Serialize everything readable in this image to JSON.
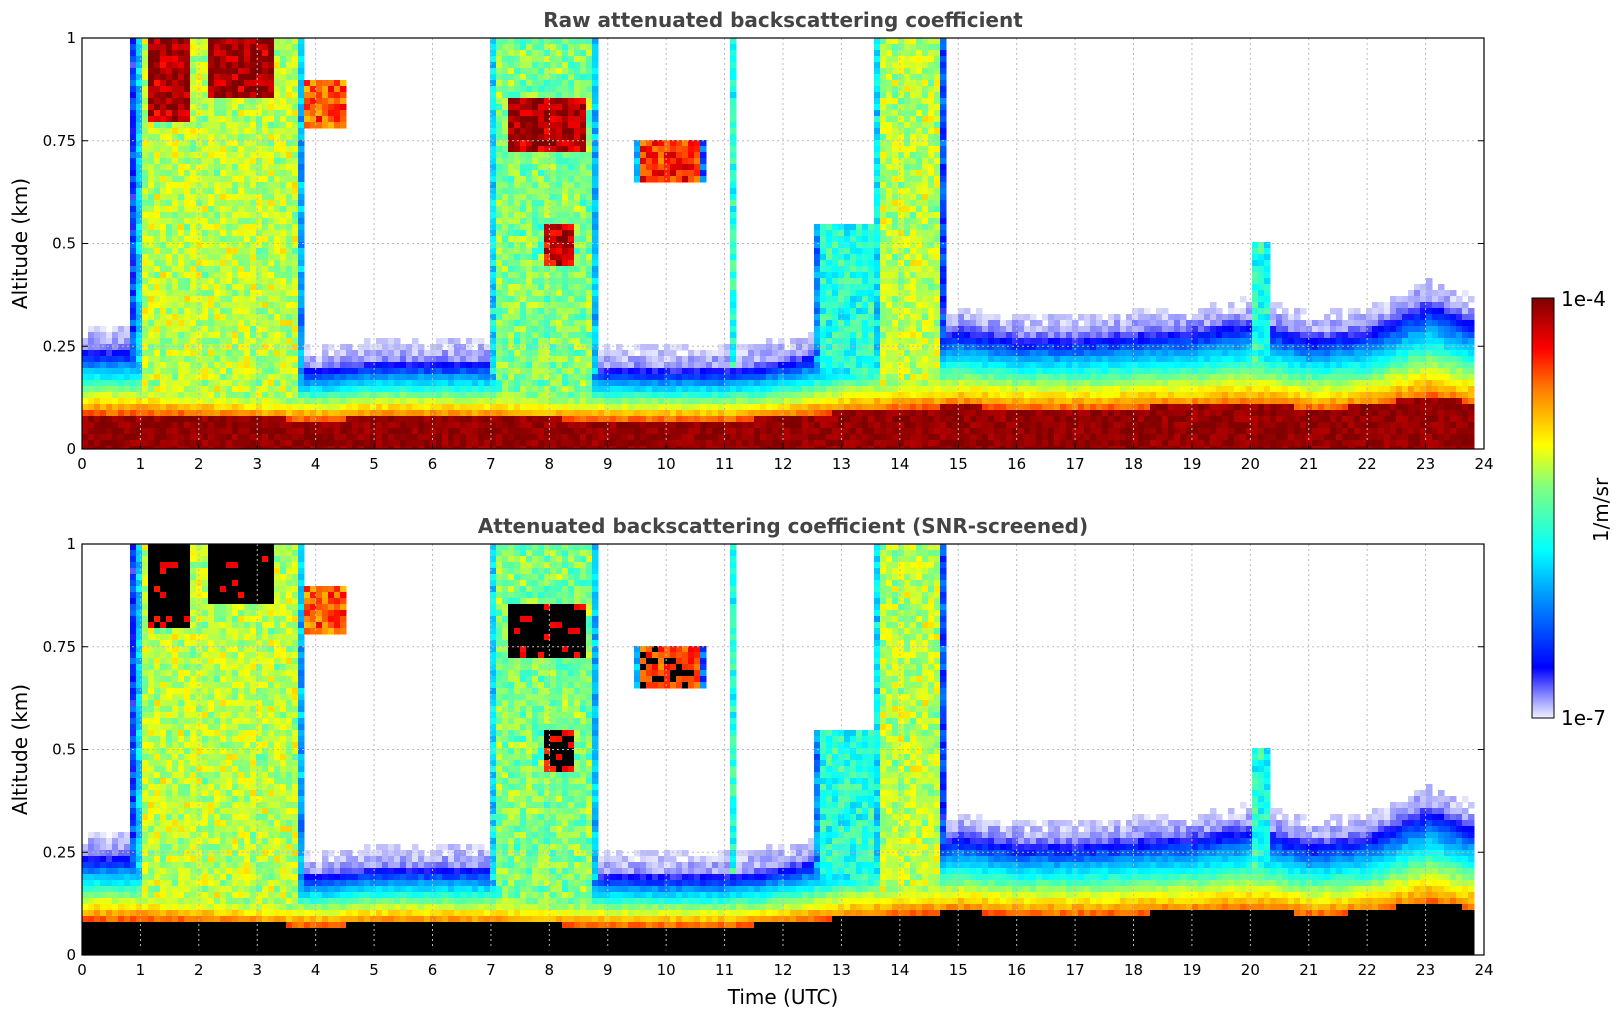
{
  "chart_data": [
    {
      "type": "heatmap",
      "title": "Raw attenuated backscattering coefficient",
      "xlabel": "",
      "ylabel": "Altitude (km)",
      "xlim": [
        0,
        24
      ],
      "ylim": [
        0,
        1
      ],
      "xticks": [
        "0",
        "1",
        "2",
        "3",
        "4",
        "5",
        "6",
        "7",
        "8",
        "9",
        "10",
        "11",
        "12",
        "13",
        "14",
        "15",
        "16",
        "17",
        "18",
        "19",
        "20",
        "21",
        "22",
        "23",
        "24"
      ],
      "yticks": [
        "0",
        "0.25",
        "0.5",
        "0.75",
        "1"
      ],
      "ytick_values": [
        0,
        0.25,
        0.5,
        0.75,
        1
      ],
      "grid": true,
      "screened": false,
      "data_end_utc": 23.8,
      "clouds": [
        {
          "t": [
            0.8,
            3.8
          ],
          "z": [
            0,
            1
          ],
          "level": 0.6
        },
        {
          "t": [
            1.0,
            1.8
          ],
          "z": [
            0.8,
            1
          ],
          "level": 0.95
        },
        {
          "t": [
            2.0,
            3.3
          ],
          "z": [
            0.85,
            1
          ],
          "level": 0.97
        },
        {
          "t": [
            3.7,
            4.5
          ],
          "z": [
            0.78,
            0.9
          ],
          "level": 0.8
        },
        {
          "t": [
            6.9,
            8.8
          ],
          "z": [
            0,
            1
          ],
          "level": 0.55
        },
        {
          "t": [
            7.1,
            8.7
          ],
          "z": [
            0.72,
            0.85
          ],
          "level": 0.95
        },
        {
          "t": [
            7.8,
            8.4
          ],
          "z": [
            0.45,
            0.55
          ],
          "level": 0.93
        },
        {
          "t": [
            9.4,
            10.6
          ],
          "z": [
            0.65,
            0.75
          ],
          "level": 0.85
        },
        {
          "t": [
            11.0,
            11.1
          ],
          "z": [
            0.2,
            1
          ],
          "level": 0.45
        },
        {
          "t": [
            12.5,
            13.6
          ],
          "z": [
            0.18,
            0.55
          ],
          "level": 0.45
        },
        {
          "t": [
            13.5,
            14.7
          ],
          "z": [
            0.15,
            1
          ],
          "level": 0.6
        },
        {
          "t": [
            20.0,
            20.3
          ],
          "z": [
            0.2,
            0.5
          ],
          "level": 0.45
        }
      ],
      "boundary_layer_top_km": [
        [
          0,
          0.25
        ],
        [
          1,
          0.25
        ],
        [
          4,
          0.2
        ],
        [
          5,
          0.22
        ],
        [
          7,
          0.22
        ],
        [
          9,
          0.2
        ],
        [
          11,
          0.2
        ],
        [
          12,
          0.22
        ],
        [
          13,
          0.26
        ],
        [
          15,
          0.3
        ],
        [
          16,
          0.28
        ],
        [
          17,
          0.28
        ],
        [
          18,
          0.29
        ],
        [
          19,
          0.3
        ],
        [
          20,
          0.32
        ],
        [
          21,
          0.28
        ],
        [
          22,
          0.3
        ],
        [
          23,
          0.37
        ],
        [
          23.8,
          0.32
        ]
      ]
    },
    {
      "type": "heatmap",
      "title": "Attenuated backscattering coefficient (SNR-screened)",
      "xlabel": "Time (UTC)",
      "ylabel": "Altitude (km)",
      "xlim": [
        0,
        24
      ],
      "ylim": [
        0,
        1
      ],
      "xticks": [
        "0",
        "1",
        "2",
        "3",
        "4",
        "5",
        "6",
        "7",
        "8",
        "9",
        "10",
        "11",
        "12",
        "13",
        "14",
        "15",
        "16",
        "17",
        "18",
        "19",
        "20",
        "21",
        "22",
        "23",
        "24"
      ],
      "yticks": [
        "0",
        "0.25",
        "0.5",
        "0.75",
        "1"
      ],
      "ytick_values": [
        0,
        0.25,
        0.5,
        0.75,
        1
      ],
      "grid": true,
      "screened": true,
      "data_end_utc": 23.8
    }
  ],
  "colorbar": {
    "label": "1/m/sr",
    "max_label": "1e-4",
    "min_label": "1e-7",
    "min_value": 1e-07,
    "max_value": 0.0001,
    "scale": "log",
    "colormap": "jet",
    "colors": {
      "low": "#e6e6ff",
      "blue": "#0000ff",
      "cyan": "#00ffff",
      "yellow": "#ffff00",
      "red": "#ff0000",
      "high": "#800000",
      "screened": "#000000"
    }
  }
}
